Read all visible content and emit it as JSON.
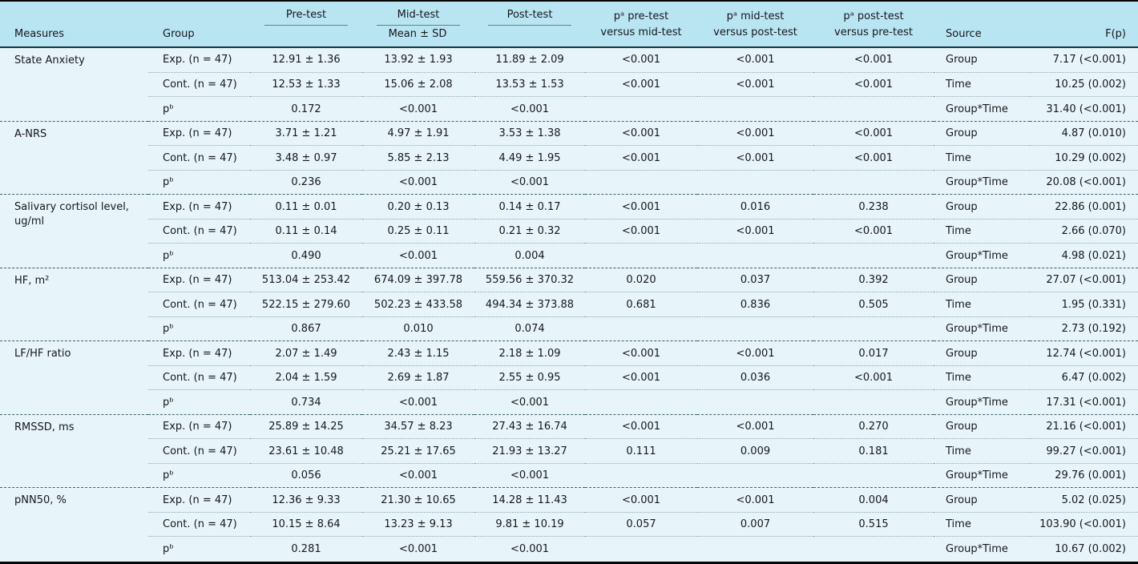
{
  "colors": {
    "header_bg": "#b9e4f2",
    "body_bg": "#e7f4f9",
    "top_border": "#050505",
    "header_rule": "#173741",
    "sub_separator": "#8fa9b0",
    "block_separator": "#44626b"
  },
  "table": {
    "header": {
      "measures": "Measures",
      "group": "Group",
      "pre_test": "Pre-test",
      "mid_test": "Mid-test",
      "post_test": "Post-test",
      "mean_sd": "Mean ± SD",
      "p_pre_vs_mid": "pᵃ pre-test\nversus mid-test",
      "p_mid_vs_post": "pᵃ mid-test\nversus post-test",
      "p_post_vs_pre": "pᵃ post-test\nversus pre-test",
      "source": "Source",
      "f_p": "F(p)"
    },
    "measures": [
      {
        "measure": "State Anxiety",
        "rows": [
          {
            "group": "Exp. (n = 47)",
            "pre": "12.91 ± 1.36",
            "mid": "13.92 ± 1.93",
            "post": "11.89 ± 2.09",
            "p1": "<0.001",
            "p2": "<0.001",
            "p3": "<0.001",
            "source": "Group",
            "f": "7.17 (<0.001)"
          },
          {
            "group": "Cont. (n = 47)",
            "pre": "12.53 ± 1.33",
            "mid": "15.06 ± 2.08",
            "post": "13.53 ± 1.53",
            "p1": "<0.001",
            "p2": "<0.001",
            "p3": "<0.001",
            "source": "Time",
            "f": "10.25 (0.002)"
          },
          {
            "group": "pᵇ",
            "pre": "0.172",
            "mid": "<0.001",
            "post": "<0.001",
            "p1": "",
            "p2": "",
            "p3": "",
            "source": "Group*Time",
            "f": "31.40 (<0.001)"
          }
        ]
      },
      {
        "measure": "A-NRS",
        "rows": [
          {
            "group": "Exp. (n = 47)",
            "pre": "3.71 ± 1.21",
            "mid": "4.97 ± 1.91",
            "post": "3.53 ± 1.38",
            "p1": "<0.001",
            "p2": "<0.001",
            "p3": "<0.001",
            "source": "Group",
            "f": "4.87 (0.010)"
          },
          {
            "group": "Cont. (n = 47)",
            "pre": "3.48 ± 0.97",
            "mid": "5.85 ± 2.13",
            "post": "4.49 ± 1.95",
            "p1": "<0.001",
            "p2": "<0.001",
            "p3": "<0.001",
            "source": "Time",
            "f": "10.29 (0.002)"
          },
          {
            "group": "pᵇ",
            "pre": "0.236",
            "mid": "<0.001",
            "post": "<0.001",
            "p1": "",
            "p2": "",
            "p3": "",
            "source": "Group*Time",
            "f": "20.08 (<0.001)"
          }
        ]
      },
      {
        "measure": "Salivary cortisol level, ug/ml",
        "rows": [
          {
            "group": "Exp. (n = 47)",
            "pre": "0.11 ± 0.01",
            "mid": "0.20 ± 0.13",
            "post": "0.14 ± 0.17",
            "p1": "<0.001",
            "p2": "0.016",
            "p3": "0.238",
            "source": "Group",
            "f": "22.86 (0.001)"
          },
          {
            "group": "Cont. (n = 47)",
            "pre": "0.11 ± 0.14",
            "mid": "0.25 ± 0.11",
            "post": "0.21 ± 0.32",
            "p1": "<0.001",
            "p2": "<0.001",
            "p3": "<0.001",
            "source": "Time",
            "f": "2.66 (0.070)"
          },
          {
            "group": "pᵇ",
            "pre": "0.490",
            "mid": "<0.001",
            "post": "0.004",
            "p1": "",
            "p2": "",
            "p3": "",
            "source": "Group*Time",
            "f": "4.98 (0.021)"
          }
        ]
      },
      {
        "measure": "HF, m²",
        "rows": [
          {
            "group": "Exp. (n = 47)",
            "pre": "513.04 ± 253.42",
            "mid": "674.09 ± 397.78",
            "post": "559.56 ± 370.32",
            "p1": "0.020",
            "p2": "0.037",
            "p3": "0.392",
            "source": "Group",
            "f": "27.07 (<0.001)"
          },
          {
            "group": "Cont. (n = 47)",
            "pre": "522.15 ± 279.60",
            "mid": "502.23 ± 433.58",
            "post": "494.34 ± 373.88",
            "p1": "0.681",
            "p2": "0.836",
            "p3": "0.505",
            "source": "Time",
            "f": "1.95 (0.331)"
          },
          {
            "group": "pᵇ",
            "pre": "0.867",
            "mid": "0.010",
            "post": "0.074",
            "p1": "",
            "p2": "",
            "p3": "",
            "source": "Group*Time",
            "f": "2.73 (0.192)"
          }
        ]
      },
      {
        "measure": "LF/HF ratio",
        "rows": [
          {
            "group": "Exp. (n = 47)",
            "pre": "2.07 ± 1.49",
            "mid": "2.43 ± 1.15",
            "post": "2.18 ± 1.09",
            "p1": "<0.001",
            "p2": "<0.001",
            "p3": "0.017",
            "source": "Group",
            "f": "12.74 (<0.001)"
          },
          {
            "group": "Cont. (n = 47)",
            "pre": "2.04 ± 1.59",
            "mid": "2.69 ± 1.87",
            "post": "2.55 ± 0.95",
            "p1": "<0.001",
            "p2": "0.036",
            "p3": "<0.001",
            "source": "Time",
            "f": "6.47 (0.002)"
          },
          {
            "group": "pᵇ",
            "pre": "0.734",
            "mid": "<0.001",
            "post": "<0.001",
            "p1": "",
            "p2": "",
            "p3": "",
            "source": "Group*Time",
            "f": "17.31 (<0.001)"
          }
        ]
      },
      {
        "measure": "RMSSD, ms",
        "rows": [
          {
            "group": "Exp. (n = 47)",
            "pre": "25.89 ± 14.25",
            "mid": "34.57 ± 8.23",
            "post": "27.43 ± 16.74",
            "p1": "<0.001",
            "p2": "<0.001",
            "p3": "0.270",
            "source": "Group",
            "f": "21.16 (<0.001)"
          },
          {
            "group": "Cont. (n = 47)",
            "pre": "23.61 ± 10.48",
            "mid": "25.21 ± 17.65",
            "post": "21.93 ± 13.27",
            "p1": "0.111",
            "p2": "0.009",
            "p3": "0.181",
            "source": "Time",
            "f": "99.27 (<0.001)"
          },
          {
            "group": "pᵇ",
            "pre": "0.056",
            "mid": "<0.001",
            "post": "<0.001",
            "p1": "",
            "p2": "",
            "p3": "",
            "source": "Group*Time",
            "f": "29.76 (0.001)"
          }
        ]
      },
      {
        "measure": "pNN50, %",
        "rows": [
          {
            "group": "Exp. (n = 47)",
            "pre": "12.36 ± 9.33",
            "mid": "21.30 ± 10.65",
            "post": "14.28 ± 11.43",
            "p1": "<0.001",
            "p2": "<0.001",
            "p3": "0.004",
            "source": "Group",
            "f": "5.02 (0.025)"
          },
          {
            "group": "Cont. (n = 47)",
            "pre": "10.15 ± 8.64",
            "mid": "13.23 ± 9.13",
            "post": "9.81 ± 10.19",
            "p1": "0.057",
            "p2": "0.007",
            "p3": "0.515",
            "source": "Time",
            "f": "103.90 (<0.001)"
          },
          {
            "group": "pᵇ",
            "pre": "0.281",
            "mid": "<0.001",
            "post": "<0.001",
            "p1": "",
            "p2": "",
            "p3": "",
            "source": "Group*Time",
            "f": "10.67 (0.002)"
          }
        ]
      }
    ]
  }
}
